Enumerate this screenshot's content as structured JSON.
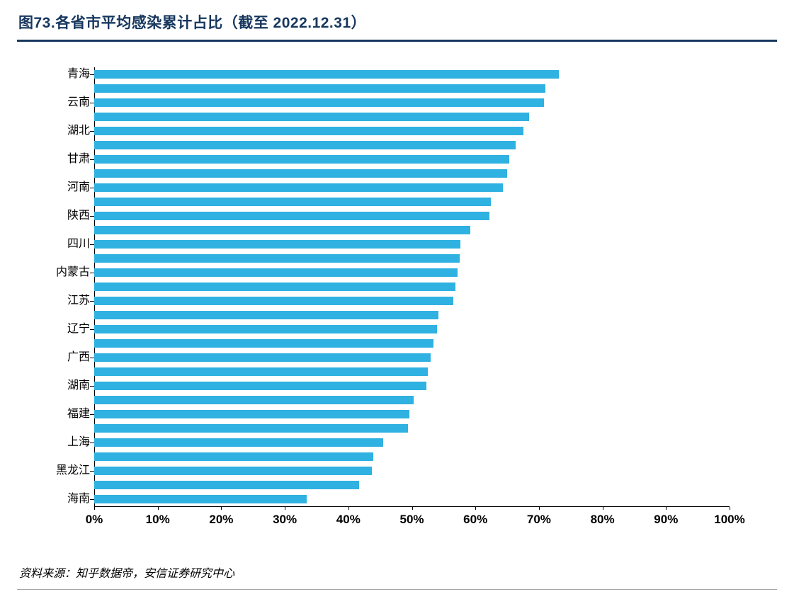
{
  "title": "图73.各省市平均感染累计占比（截至 2022.12.31）",
  "source": "资料来源：知乎数据帝，安信证券研究中心",
  "chart_data": {
    "type": "bar",
    "orientation": "horizontal",
    "title": "图73.各省市平均感染累计占比（截至 2022.12.31）",
    "bar_color": "#2FB1E1",
    "grid": false,
    "legend": false,
    "xlim": [
      0,
      100
    ],
    "x_tick_labels": [
      "0%",
      "10%",
      "20%",
      "30%",
      "40%",
      "50%",
      "60%",
      "70%",
      "80%",
      "90%",
      "100%"
    ],
    "categories": [
      "青海",
      "",
      "云南",
      "",
      "湖北",
      "",
      "甘肃",
      "",
      "河南",
      "",
      "陕西",
      "",
      "四川",
      "",
      "内蒙古",
      "",
      "江苏",
      "",
      "辽宁",
      "",
      "广西",
      "",
      "湖南",
      "",
      "福建",
      "",
      "上海",
      "",
      "黑龙江",
      "",
      "海南"
    ],
    "values": [
      73.1,
      71.0,
      70.8,
      68.5,
      67.6,
      66.3,
      65.3,
      65.0,
      64.3,
      62.4,
      62.2,
      59.2,
      57.6,
      57.5,
      57.2,
      56.9,
      56.5,
      54.2,
      54.0,
      53.4,
      53.0,
      52.5,
      52.3,
      50.3,
      49.6,
      49.4,
      45.5,
      43.9,
      43.7,
      41.7,
      33.4
    ]
  }
}
